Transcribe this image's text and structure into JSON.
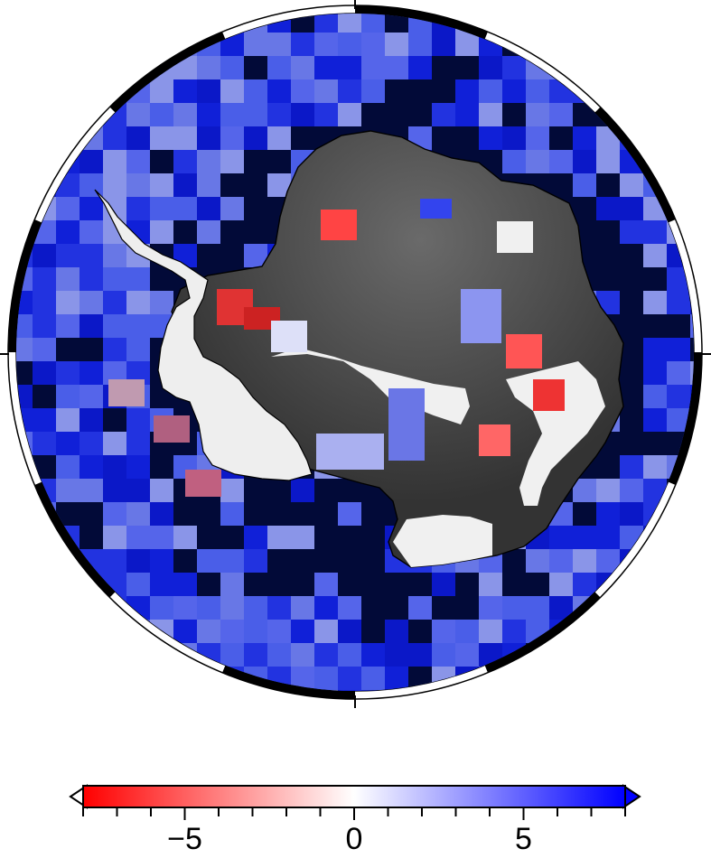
{
  "map": {
    "projection": "south-polar-stereographic",
    "frame_style": "alternating black-white fancy frame",
    "colors": {
      "land_dark": "#3a3a3a",
      "ice_light": "#f2f2f2",
      "ocean_fill": "#3a52e6",
      "deep_navy": "#020a38",
      "coastline": "#000000"
    }
  },
  "colorbar": {
    "tick_labels": [
      "−5",
      "0",
      "5"
    ],
    "tick_values": [
      -5,
      0,
      5
    ],
    "range": [
      -8,
      8
    ],
    "minor_tick_step": 1,
    "triangles": "both",
    "colors": {
      "low": "#ff0000",
      "mid": "#ffffff",
      "high": "#0000ff"
    }
  }
}
